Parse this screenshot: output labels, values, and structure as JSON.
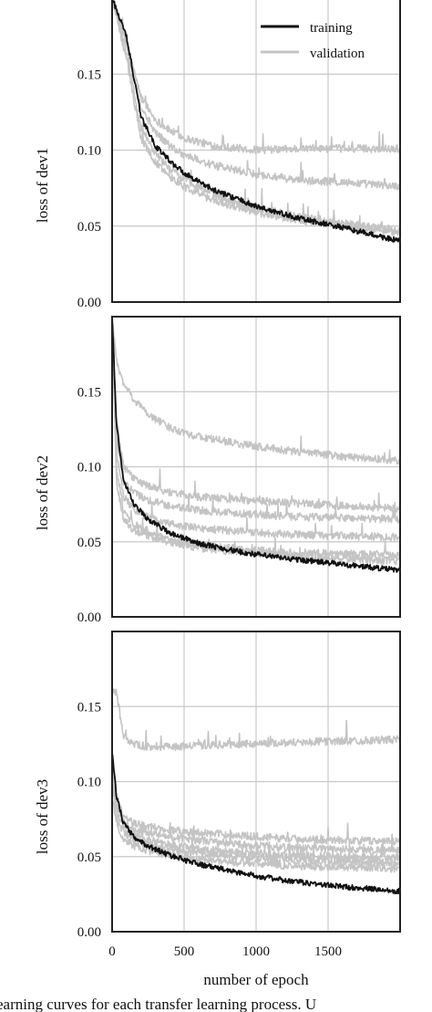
{
  "figure": {
    "caption_fragment": "earning curves for each transfer learning process. U"
  },
  "colors": {
    "training": "#111111",
    "validation": "#c4c4c4",
    "grid": "#c8c8c8",
    "frame": "#222222",
    "background": "#ffffff"
  },
  "chart_data": [
    {
      "type": "line",
      "title": "",
      "xlabel": "",
      "ylabel": "loss of dev1",
      "xlim": [
        0,
        2000
      ],
      "ylim": [
        0.0,
        0.2
      ],
      "xticks": [
        0,
        500,
        1000,
        1500
      ],
      "yticks": [
        0.0,
        0.05,
        0.1,
        0.15
      ],
      "ytick_labels": [
        "0.00",
        "0.05",
        "0.10",
        "0.15"
      ],
      "grid": true,
      "legend": {
        "placement": "top-right",
        "entries": [
          "training",
          "validation"
        ]
      },
      "series": [
        {
          "name": "training",
          "role": "training",
          "x": [
            0,
            100,
            200,
            300,
            400,
            500,
            700,
            1000,
            1300,
            1600,
            2000
          ],
          "y": [
            0.2,
            0.175,
            0.122,
            0.103,
            0.093,
            0.085,
            0.074,
            0.063,
            0.055,
            0.049,
            0.04
          ]
        },
        {
          "role": "validation",
          "x": [
            0,
            100,
            200,
            300,
            400,
            500,
            700,
            1000,
            1300,
            1600,
            2000
          ],
          "y": [
            0.2,
            0.17,
            0.135,
            0.12,
            0.113,
            0.108,
            0.103,
            0.1,
            0.101,
            0.101,
            0.101
          ]
        },
        {
          "role": "validation",
          "x": [
            0,
            100,
            200,
            300,
            400,
            500,
            700,
            1000,
            1300,
            1600,
            2000
          ],
          "y": [
            0.2,
            0.17,
            0.128,
            0.112,
            0.103,
            0.097,
            0.09,
            0.084,
            0.08,
            0.079,
            0.076
          ]
        },
        {
          "role": "validation",
          "x": [
            0,
            100,
            200,
            300,
            400,
            500,
            700,
            1000,
            1300,
            1600,
            2000
          ],
          "y": [
            0.2,
            0.165,
            0.115,
            0.098,
            0.088,
            0.081,
            0.071,
            0.062,
            0.056,
            0.052,
            0.047
          ]
        },
        {
          "role": "validation",
          "x": [
            0,
            100,
            200,
            300,
            400,
            500,
            700,
            1000,
            1300,
            1600,
            2000
          ],
          "y": [
            0.2,
            0.16,
            0.108,
            0.092,
            0.083,
            0.076,
            0.067,
            0.059,
            0.054,
            0.05,
            0.046
          ]
        }
      ]
    },
    {
      "type": "line",
      "title": "",
      "xlabel": "",
      "ylabel": "loss of dev2",
      "xlim": [
        0,
        2000
      ],
      "ylim": [
        0.0,
        0.2
      ],
      "xticks": [
        0,
        500,
        1000,
        1500
      ],
      "yticks": [
        0.0,
        0.05,
        0.1,
        0.15
      ],
      "ytick_labels": [
        "0.00",
        "0.05",
        "0.10",
        "0.15"
      ],
      "grid": true,
      "series": [
        {
          "name": "training",
          "role": "training",
          "x": [
            0,
            30,
            80,
            150,
            250,
            400,
            600,
            900,
            1200,
            1600,
            2000
          ],
          "y": [
            0.2,
            0.13,
            0.09,
            0.075,
            0.065,
            0.056,
            0.049,
            0.043,
            0.039,
            0.035,
            0.031
          ]
        },
        {
          "role": "validation",
          "x": [
            0,
            30,
            80,
            150,
            250,
            400,
            600,
            900,
            1200,
            1600,
            2000
          ],
          "y": [
            0.2,
            0.17,
            0.155,
            0.145,
            0.135,
            0.126,
            0.12,
            0.115,
            0.111,
            0.107,
            0.104
          ]
        },
        {
          "role": "validation",
          "x": [
            0,
            30,
            80,
            150,
            250,
            400,
            600,
            900,
            1200,
            1600,
            2000
          ],
          "y": [
            0.2,
            0.13,
            0.1,
            0.092,
            0.087,
            0.083,
            0.08,
            0.078,
            0.076,
            0.074,
            0.072
          ]
        },
        {
          "role": "validation",
          "x": [
            0,
            30,
            80,
            150,
            250,
            400,
            600,
            900,
            1200,
            1600,
            2000
          ],
          "y": [
            0.2,
            0.12,
            0.09,
            0.083,
            0.078,
            0.074,
            0.071,
            0.069,
            0.067,
            0.066,
            0.065
          ]
        },
        {
          "role": "validation",
          "x": [
            0,
            30,
            80,
            150,
            250,
            400,
            600,
            900,
            1200,
            1600,
            2000
          ],
          "y": [
            0.2,
            0.11,
            0.08,
            0.072,
            0.066,
            0.062,
            0.059,
            0.057,
            0.055,
            0.054,
            0.053
          ]
        },
        {
          "role": "validation",
          "x": [
            0,
            30,
            80,
            150,
            250,
            400,
            600,
            900,
            1200,
            1600,
            2000
          ],
          "y": [
            0.2,
            0.1,
            0.07,
            0.062,
            0.056,
            0.051,
            0.048,
            0.045,
            0.043,
            0.042,
            0.041
          ]
        },
        {
          "role": "validation",
          "x": [
            0,
            30,
            80,
            150,
            250,
            400,
            600,
            900,
            1200,
            1600,
            2000
          ],
          "y": [
            0.2,
            0.09,
            0.065,
            0.058,
            0.054,
            0.05,
            0.046,
            0.043,
            0.041,
            0.039,
            0.037
          ]
        }
      ]
    },
    {
      "type": "line",
      "title": "",
      "xlabel": "number of epoch",
      "ylabel": "loss of dev3",
      "xlim": [
        0,
        2000
      ],
      "ylim": [
        0.0,
        0.2
      ],
      "xticks": [
        0,
        500,
        1000,
        1500
      ],
      "yticks": [
        0.0,
        0.05,
        0.1,
        0.15
      ],
      "ytick_labels": [
        "0.00",
        "0.05",
        "0.10",
        "0.15"
      ],
      "grid": true,
      "series": [
        {
          "name": "training",
          "role": "training",
          "x": [
            0,
            30,
            80,
            150,
            250,
            400,
            600,
            900,
            1200,
            1600,
            2000
          ],
          "y": [
            0.12,
            0.09,
            0.072,
            0.063,
            0.057,
            0.051,
            0.045,
            0.039,
            0.034,
            0.03,
            0.027
          ]
        },
        {
          "role": "validation",
          "x": [
            0,
            30,
            80,
            150,
            250,
            400,
            600,
            900,
            1200,
            1600,
            2000
          ],
          "y": [
            0.16,
            0.16,
            0.13,
            0.125,
            0.123,
            0.123,
            0.124,
            0.125,
            0.126,
            0.127,
            0.128
          ]
        },
        {
          "role": "validation",
          "x": [
            0,
            30,
            80,
            150,
            250,
            400,
            600,
            900,
            1200,
            1600,
            2000
          ],
          "y": [
            0.12,
            0.09,
            0.077,
            0.072,
            0.07,
            0.068,
            0.066,
            0.064,
            0.062,
            0.061,
            0.06
          ]
        },
        {
          "role": "validation",
          "x": [
            0,
            30,
            80,
            150,
            250,
            400,
            600,
            900,
            1200,
            1600,
            2000
          ],
          "y": [
            0.11,
            0.085,
            0.073,
            0.068,
            0.066,
            0.063,
            0.061,
            0.058,
            0.056,
            0.055,
            0.054
          ]
        },
        {
          "role": "validation",
          "x": [
            0,
            30,
            80,
            150,
            250,
            400,
            600,
            900,
            1200,
            1600,
            2000
          ],
          "y": [
            0.1,
            0.08,
            0.069,
            0.064,
            0.061,
            0.058,
            0.055,
            0.053,
            0.051,
            0.05,
            0.049
          ]
        },
        {
          "role": "validation",
          "x": [
            0,
            30,
            80,
            150,
            250,
            400,
            600,
            900,
            1200,
            1600,
            2000
          ],
          "y": [
            0.1,
            0.075,
            0.066,
            0.061,
            0.058,
            0.055,
            0.052,
            0.05,
            0.048,
            0.047,
            0.046
          ]
        },
        {
          "role": "validation",
          "x": [
            0,
            30,
            80,
            150,
            250,
            400,
            600,
            900,
            1200,
            1600,
            2000
          ],
          "y": [
            0.09,
            0.07,
            0.062,
            0.057,
            0.054,
            0.051,
            0.048,
            0.046,
            0.044,
            0.043,
            0.042
          ]
        }
      ]
    }
  ]
}
